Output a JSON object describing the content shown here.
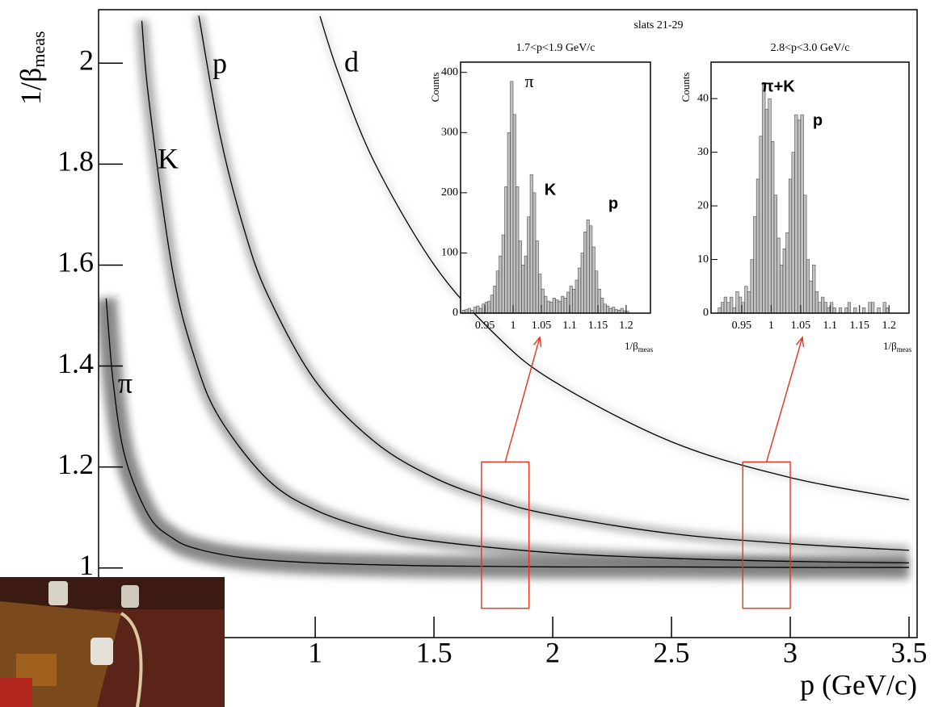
{
  "chart_data": [
    {
      "type": "line",
      "xlabel": "p (GeV/c)",
      "ylabel": "1/β",
      "ylabel_subscript": "meas",
      "xlim": [
        0.088,
        3.534
      ],
      "ylim": [
        0.862,
        2.106
      ],
      "xticks": [
        1,
        1.5,
        2,
        2.5,
        3,
        3.5
      ],
      "yticks": [
        1,
        1.2,
        1.4,
        1.6,
        1.8,
        2
      ],
      "inset_group_title": "slats 21-29",
      "series": [
        {
          "name": "π",
          "color": "#000000",
          "x": [
            0.12,
            0.15,
            0.2,
            0.3,
            0.4,
            0.5,
            0.7,
            1,
            1.5,
            2,
            2.5,
            3,
            3.5
          ],
          "values": [
            1.534,
            1.366,
            1.219,
            1.103,
            1.059,
            1.038,
            1.02,
            1.01,
            1.004,
            1.002,
            1.002,
            1.001,
            1.001
          ]
        },
        {
          "name": "K",
          "color": "#000000",
          "x": [
            0.27,
            0.3,
            0.4,
            0.5,
            0.6,
            0.8,
            1,
            1.25,
            1.5,
            2,
            2.5,
            3,
            3.5
          ],
          "values": [
            2.084,
            1.926,
            1.588,
            1.405,
            1.295,
            1.175,
            1.115,
            1.075,
            1.053,
            1.03,
            1.019,
            1.013,
            1.01
          ]
        },
        {
          "name": "p",
          "color": "#000000",
          "x": [
            0.51,
            0.6,
            0.7,
            0.8,
            1,
            1.25,
            1.5,
            1.75,
            2,
            2.5,
            3,
            3.5
          ],
          "values": [
            2.094,
            1.856,
            1.672,
            1.541,
            1.371,
            1.25,
            1.179,
            1.135,
            1.105,
            1.068,
            1.048,
            1.035
          ]
        },
        {
          "name": "d",
          "color": "#000000",
          "x": [
            1.02,
            1.1,
            1.25,
            1.5,
            1.75,
            2,
            2.5,
            3,
            3.5
          ],
          "values": [
            2.093,
            1.977,
            1.803,
            1.601,
            1.466,
            1.371,
            1.25,
            1.179,
            1.135
          ]
        }
      ],
      "regions": [
        {
          "xrange": [
            1.7,
            1.9
          ],
          "yrange": [
            0.92,
            1.21
          ],
          "color": "#e8321e"
        },
        {
          "xrange": [
            2.8,
            3.0
          ],
          "yrange": [
            0.92,
            1.21
          ],
          "color": "#e8321e"
        }
      ]
    },
    {
      "type": "histogram",
      "title": "1.7<p<1.9 GeV/c",
      "xlabel": "1/β",
      "xlabel_subscript": "meas",
      "ylabel": "Counts",
      "xlim": [
        0.907,
        1.243
      ],
      "ylim": [
        0,
        417
      ],
      "xticks": [
        0.95,
        1,
        1.05,
        1.1,
        1.15,
        1.2
      ],
      "yticks": [
        0,
        100,
        200,
        300,
        400
      ],
      "color": "#c0c0c0",
      "annotations": [
        "π",
        "K",
        "p"
      ],
      "bins": [
        0.91,
        0.915,
        0.92,
        0.925,
        0.93,
        0.935,
        0.94,
        0.945,
        0.95,
        0.955,
        0.96,
        0.965,
        0.97,
        0.975,
        0.98,
        0.985,
        0.99,
        0.995,
        1,
        1.005,
        1.01,
        1.015,
        1.02,
        1.025,
        1.03,
        1.035,
        1.04,
        1.045,
        1.05,
        1.055,
        1.06,
        1.065,
        1.07,
        1.075,
        1.08,
        1.085,
        1.09,
        1.095,
        1.1,
        1.105,
        1.11,
        1.115,
        1.12,
        1.125,
        1.13,
        1.135,
        1.14,
        1.145,
        1.15,
        1.155,
        1.16,
        1.165,
        1.17,
        1.175,
        1.18,
        1.185,
        1.19,
        1.195,
        1.2,
        1.205
      ],
      "values": [
        5,
        6,
        8,
        5,
        10,
        12,
        8,
        15,
        18,
        20,
        30,
        45,
        70,
        95,
        130,
        210,
        300,
        385,
        330,
        210,
        120,
        80,
        95,
        160,
        230,
        200,
        120,
        65,
        40,
        28,
        20,
        18,
        25,
        22,
        20,
        28,
        25,
        35,
        45,
        40,
        55,
        75,
        100,
        135,
        155,
        145,
        110,
        70,
        40,
        25,
        15,
        12,
        8,
        10,
        6,
        5,
        8,
        4,
        3
      ]
    },
    {
      "type": "histogram",
      "title": "2.8<p<3.0 GeV/c",
      "xlabel": "1/β",
      "xlabel_subscript": "meas",
      "ylabel": "Counts",
      "xlim": [
        0.898,
        1.234
      ],
      "ylim": [
        0,
        46.8
      ],
      "xticks": [
        0.95,
        1,
        1.05,
        1.1,
        1.15,
        1.2
      ],
      "yticks": [
        0,
        10,
        20,
        30,
        40
      ],
      "color": "#c0c0c0",
      "annotations": [
        "π+K",
        "p"
      ],
      "bins": [
        0.91,
        0.915,
        0.92,
        0.925,
        0.93,
        0.935,
        0.94,
        0.945,
        0.95,
        0.955,
        0.96,
        0.965,
        0.97,
        0.975,
        0.98,
        0.985,
        0.99,
        0.995,
        1,
        1.005,
        1.01,
        1.015,
        1.02,
        1.025,
        1.03,
        1.035,
        1.04,
        1.045,
        1.05,
        1.055,
        1.06,
        1.065,
        1.07,
        1.075,
        1.08,
        1.085,
        1.09,
        1.095,
        1.1,
        1.105,
        1.11,
        1.115,
        1.12,
        1.125,
        1.13,
        1.135,
        1.14,
        1.145,
        1.15,
        1.155,
        1.16,
        1.165,
        1.17,
        1.175,
        1.18,
        1.185,
        1.19,
        1.195,
        1.2
      ],
      "values": [
        1,
        2,
        3,
        2,
        3,
        1,
        4,
        3,
        2,
        5,
        4,
        10,
        18,
        25,
        33,
        43,
        38,
        40,
        32,
        22,
        14,
        9,
        12,
        15,
        25,
        30,
        37,
        36,
        37,
        22,
        10,
        6,
        9,
        4,
        2,
        3,
        2,
        1,
        2,
        1,
        0,
        1,
        0,
        1,
        2,
        0,
        1,
        0,
        0,
        1,
        0,
        2,
        2,
        0,
        1,
        0,
        2,
        1
      ]
    }
  ]
}
